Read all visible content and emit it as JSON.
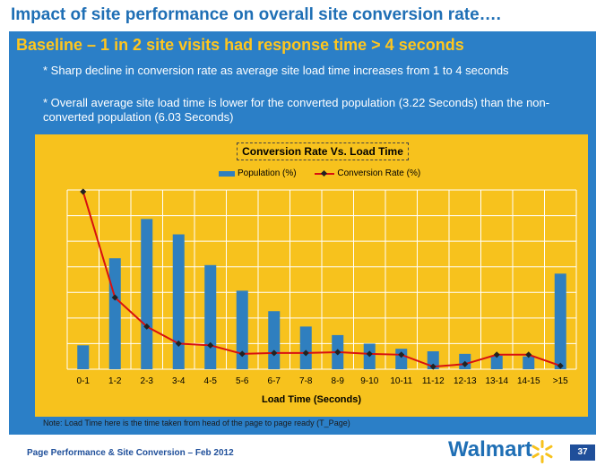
{
  "slide": {
    "title": "Impact of site performance on overall site conversion rate….",
    "subtitle": "Baseline – 1 in 2 site visits had response time > 4 seconds",
    "bullet1": "* Sharp decline in conversion rate as average site load time increases from 1 to 4 seconds",
    "bullet2": "* Overall average site load time is lower for the converted population (3.22 Seconds) than the non-converted population (6.03 Seconds)",
    "note": "Note: Load Time here is the time taken from head of the page to page ready (T_Page)",
    "footer": "Page Performance & Site Conversion – Feb 2012",
    "logo": "Walmart",
    "page_number": "37"
  },
  "colors": {
    "blue_panel": "#2b7fc7",
    "chart_bg": "#f7c21d",
    "bar": "#2f7fbf",
    "line": "#d81010",
    "subtitle": "#ffc61e"
  },
  "chart_data": {
    "type": "bar",
    "title": "Conversion Rate Vs. Load Time",
    "xlabel": "Load Time (Seconds)",
    "ylabel": "",
    "categories": [
      "0-1",
      "1-2",
      "2-3",
      "3-4",
      "4-5",
      "5-6",
      "6-7",
      "7-8",
      "8-9",
      "9-10",
      "10-11",
      "11-12",
      "12-13",
      "13-14",
      "14-15",
      ">15"
    ],
    "series": [
      {
        "name": "Population (%)",
        "type": "bar",
        "values": [
          14,
          65,
          88,
          79,
          61,
          46,
          34,
          25,
          20,
          15,
          12,
          10.5,
          9,
          8,
          7.5,
          56
        ]
      },
      {
        "name": "Conversion Rate (%)",
        "type": "line",
        "values": [
          104,
          42,
          25,
          15,
          14,
          9,
          9.5,
          9.5,
          10,
          9,
          8.5,
          1.5,
          3,
          8.5,
          8.5,
          2
        ]
      }
    ],
    "ylim": [
      0,
      105
    ],
    "grid": true,
    "legend": "top"
  }
}
